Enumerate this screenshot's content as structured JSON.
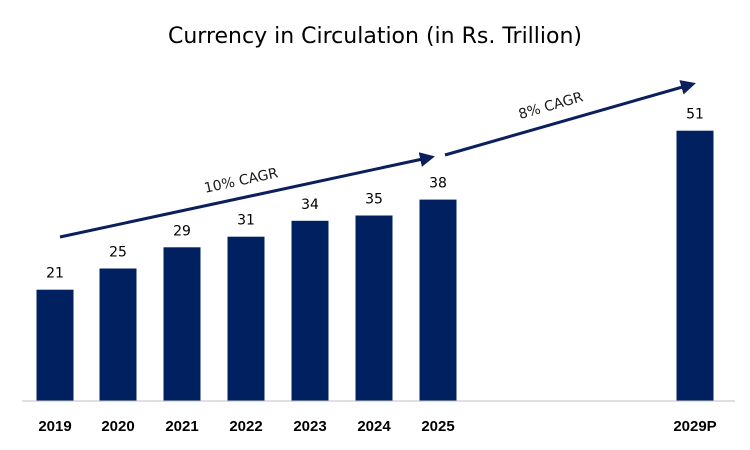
{
  "chart_data": {
    "type": "bar",
    "title": "Currency in Circulation (in Rs. Trillion)",
    "xlabel": "",
    "ylabel": "",
    "categories": [
      "2019",
      "2020",
      "2021",
      "2022",
      "2023",
      "2024",
      "2025",
      "2029P"
    ],
    "values": [
      21,
      25,
      29,
      31,
      34,
      35,
      38,
      51
    ],
    "value_labels": [
      "21",
      "25",
      "29",
      "31",
      "34",
      "35",
      "38",
      "51"
    ],
    "ylim": [
      0,
      60
    ],
    "grid": false,
    "legend": "none",
    "annotations": [
      {
        "text": "10% CAGR",
        "from": "2019",
        "to": "2025"
      },
      {
        "text": "8% CAGR",
        "from": "2025",
        "to": "2029P"
      }
    ]
  },
  "colors": {
    "bar": "#002060",
    "arrow": "#0b1f5c",
    "axis": "#bfbfbf",
    "text": "#000000"
  }
}
